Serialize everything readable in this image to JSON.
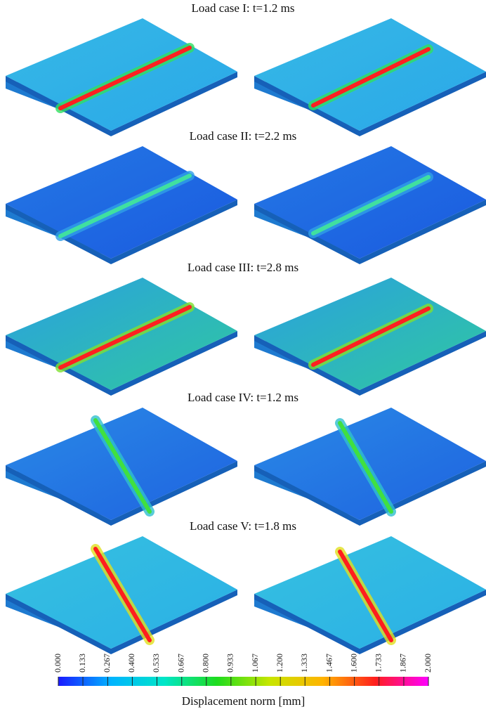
{
  "panels": [
    {
      "title": "Load case I: t=1.2 ms"
    },
    {
      "title": "Load case II: t=2.2 ms"
    },
    {
      "title": "Load case III: t=2.8 ms"
    },
    {
      "title": "Load case IV: t=1.2 ms"
    },
    {
      "title": "Load case V: t=1.8 ms"
    }
  ],
  "colorbar": {
    "lim": [
      0,
      2
    ],
    "ticks": [
      {
        "value": 0,
        "label": "0.000"
      },
      0.133,
      0.267,
      {
        "value": 0.4,
        "label": "0.400"
      },
      0.533,
      0.667,
      {
        "value": 0.8,
        "label": "0.800"
      },
      0.933,
      1.067,
      {
        "value": 1.2,
        "label": "1.200"
      },
      1.333,
      1.467,
      {
        "value": 1.6,
        "label": "1.600"
      },
      1.733,
      1.867,
      {
        "value": 2,
        "label": "2.000"
      }
    ],
    "label": "Displacement norm [mm]",
    "colors": [
      "#1a1aff",
      "#00b4ff",
      "#00e6c8",
      "#1edc1e",
      "#c8e600",
      "#ffb400",
      "#ff1e1e",
      "#ff00ff"
    ]
  }
}
